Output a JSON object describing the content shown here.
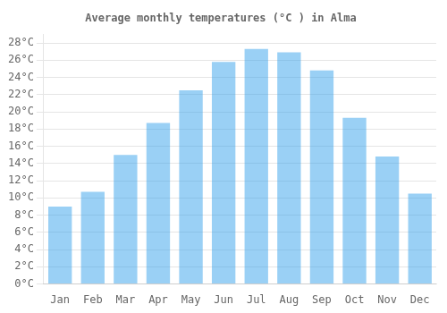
{
  "chart_data": {
    "type": "bar",
    "title": "Average monthly temperatures (°C ) in Alma",
    "categories": [
      "Jan",
      "Feb",
      "Mar",
      "Apr",
      "May",
      "Jun",
      "Jul",
      "Aug",
      "Sep",
      "Oct",
      "Nov",
      "Dec"
    ],
    "values": [
      9.0,
      10.7,
      15.0,
      18.7,
      22.5,
      25.8,
      27.3,
      26.9,
      24.8,
      19.3,
      14.8,
      10.5
    ],
    "ylim": [
      0,
      29
    ],
    "yticks": [
      {
        "value": 0,
        "label": "0°C"
      },
      {
        "value": 2,
        "label": "2°C"
      },
      {
        "value": 4,
        "label": "4°C"
      },
      {
        "value": 6,
        "label": "6°C"
      },
      {
        "value": 8,
        "label": "8°C"
      },
      {
        "value": 10,
        "label": "10°C"
      },
      {
        "value": 12,
        "label": "12°C"
      },
      {
        "value": 14,
        "label": "14°C"
      },
      {
        "value": 16,
        "label": "16°C"
      },
      {
        "value": 18,
        "label": "18°C"
      },
      {
        "value": 20,
        "label": "20°C"
      },
      {
        "value": 22,
        "label": "22°C"
      },
      {
        "value": 24,
        "label": "24°C"
      },
      {
        "value": 26,
        "label": "26°C"
      },
      {
        "value": 28,
        "label": "28°C"
      }
    ],
    "grid": true
  }
}
